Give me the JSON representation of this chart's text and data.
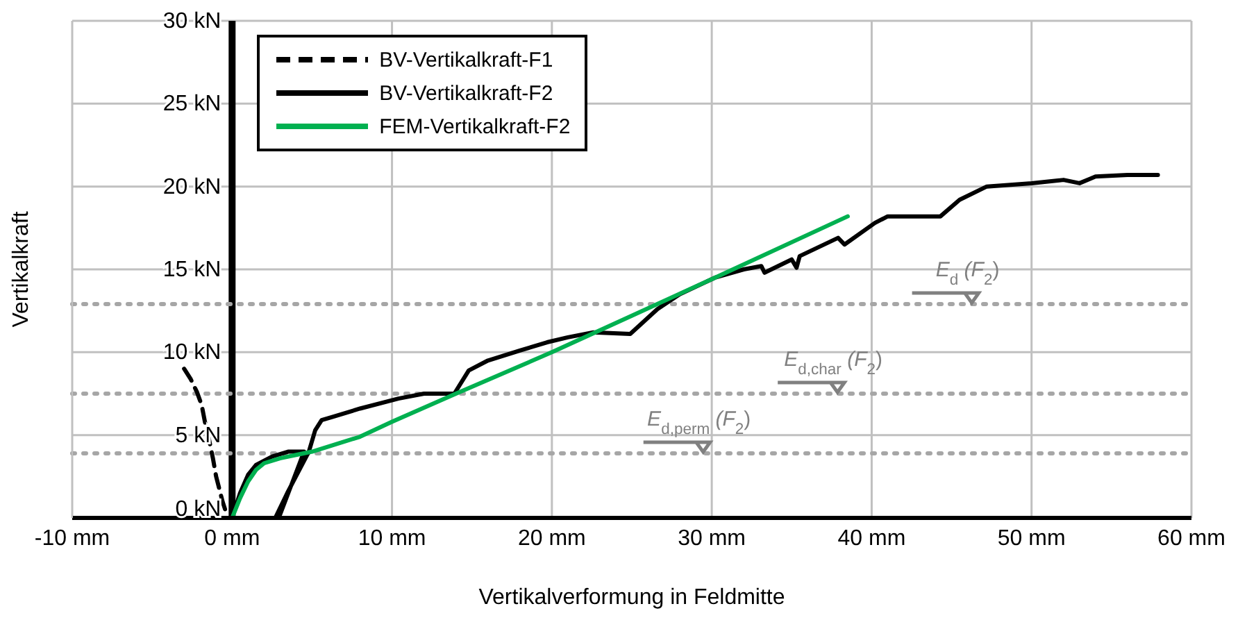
{
  "chart_data": {
    "type": "line",
    "xlabel": "Vertikalverformung in Feldmitte",
    "ylabel": "Vertikalkraft",
    "xlim": [
      -10,
      60
    ],
    "xticks": [
      {
        "value": -10,
        "label": "-10 mm"
      },
      {
        "value": 0,
        "label": "0 mm"
      },
      {
        "value": 10,
        "label": "10 mm"
      },
      {
        "value": 20,
        "label": "20 mm"
      },
      {
        "value": 30,
        "label": "30 mm"
      },
      {
        "value": 40,
        "label": "40 mm"
      },
      {
        "value": 50,
        "label": "50 mm"
      },
      {
        "value": 60,
        "label": "60 mm"
      }
    ],
    "ylim": [
      0,
      30
    ],
    "yticks": [
      {
        "value": 0,
        "label": "0 kN"
      },
      {
        "value": 5,
        "label": "5 kN"
      },
      {
        "value": 10,
        "label": "10 kN"
      },
      {
        "value": 15,
        "label": "15 kN"
      },
      {
        "value": 20,
        "label": "20 kN"
      },
      {
        "value": 25,
        "label": "25 kN"
      },
      {
        "value": 30,
        "label": "30 kN"
      }
    ],
    "grid": true,
    "legend": "top left",
    "marker": "none",
    "series": [
      {
        "name": "BV-Vertikalkraft-F1",
        "color": "#000000",
        "line_style": "dashed",
        "x": [
          -3.0,
          -2.6,
          -2.2,
          -1.9,
          -1.7,
          -1.5,
          -1.2,
          -1.0,
          -0.6,
          -0.3
        ],
        "values": [
          9.0,
          8.4,
          7.6,
          6.8,
          5.8,
          5.0,
          3.6,
          2.5,
          1.0,
          0.1
        ]
      },
      {
        "name": "BV-Vertikalkraft-F2",
        "color": "#000000",
        "line_style": "solid",
        "x": [
          0,
          0.5,
          1,
          1.5,
          2.5,
          3.5,
          4.5,
          3.0,
          2.7,
          3.5,
          4.8,
          5.2,
          5.6,
          6.3,
          8,
          10.4,
          12,
          13.9,
          14.8,
          16,
          18,
          19.7,
          21,
          22.6,
          24.9,
          26.6,
          28,
          30.2,
          32,
          33.1,
          33.3,
          35,
          35.3,
          35.5,
          37.9,
          38.3,
          40.2,
          41,
          42.3,
          44.3,
          45.5,
          47.2,
          50,
          52,
          53,
          54,
          56,
          57.9
        ],
        "values": [
          0,
          1.5,
          2.6,
          3.2,
          3.7,
          4.0,
          4.0,
          0.2,
          0,
          1.6,
          4.0,
          5.3,
          5.9,
          6.1,
          6.6,
          7.2,
          7.5,
          7.5,
          8.9,
          9.5,
          10.1,
          10.6,
          10.9,
          11.2,
          11.1,
          12.6,
          13.5,
          14.5,
          15.0,
          15.2,
          14.8,
          15.6,
          15.1,
          15.8,
          16.9,
          16.5,
          17.8,
          18.2,
          18.2,
          18.2,
          19.2,
          20.0,
          20.2,
          20.4,
          20.2,
          20.6,
          20.7,
          20.7
        ]
      },
      {
        "name": "FEM-Vertikalkraft-F2",
        "color": "#00b050",
        "line_style": "solid",
        "x": [
          0,
          0.5,
          1,
          1.5,
          2,
          3,
          4,
          5,
          8,
          10,
          14,
          20,
          25,
          30.2,
          38.5
        ],
        "values": [
          0,
          1.2,
          2.2,
          2.9,
          3.3,
          3.6,
          3.8,
          4.0,
          4.9,
          5.8,
          7.5,
          10.0,
          12.2,
          14.5,
          18.2
        ]
      }
    ],
    "ref_lines": [
      {
        "axis": "y",
        "value": 12.9,
        "label": "E$_{d}$ (F$_{2}$)",
        "color": "#a6a6a6",
        "line_style": "dotted"
      },
      {
        "axis": "y",
        "value": 7.5,
        "label": "E$_{d,char}$ (F$_{2}$)",
        "color": "#a6a6a6",
        "line_style": "dotted"
      },
      {
        "axis": "y",
        "value": 3.9,
        "label": "E$_{d,perm}$ (F$_{2}$)",
        "color": "#a6a6a6",
        "line_style": "dotted"
      }
    ]
  }
}
